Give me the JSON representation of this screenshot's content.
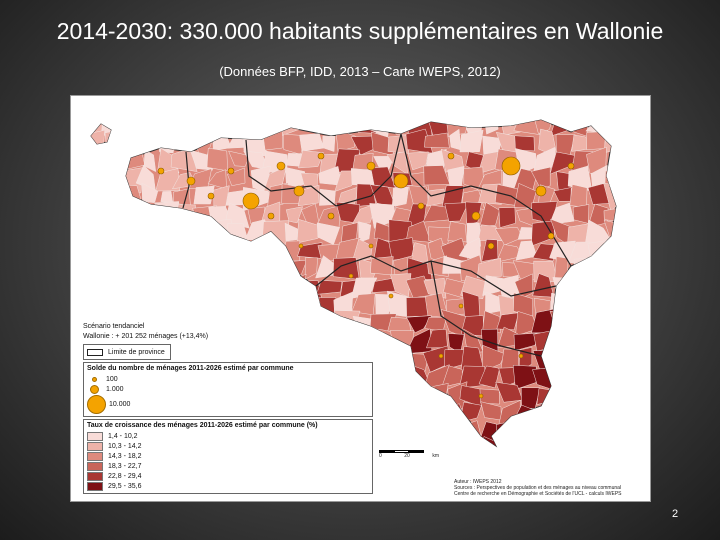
{
  "title": "2014-2030: 330.000 habitants supplémentaires en Wallonie",
  "subtitle": "(Données BFP, IDD, 2013 – Carte IWEPS, 2012)",
  "page_number": "2",
  "legend": {
    "scenario_title": "Scénario tendanciel",
    "scenario_value": "Wallonie : + 201 252 ménages (+13,4%)",
    "province_label": "Limite de province",
    "solde_title": "Solde du nombre de ménages 2011-2026 estimé par commune",
    "circles": [
      "100",
      "1.000",
      "10.000"
    ],
    "taux_title": "Taux de croissance des ménages 2011-2026 estimé par commune (%)",
    "classes": [
      {
        "label": "1,4 - 10,2",
        "color": "#f8dcd8"
      },
      {
        "label": "10,3 - 14,2",
        "color": "#eeb3a9"
      },
      {
        "label": "14,3 - 18,2",
        "color": "#de8a7d"
      },
      {
        "label": "18,3 - 22,7",
        "color": "#c9655a"
      },
      {
        "label": "22,8 - 29,4",
        "color": "#a93733"
      },
      {
        "label": "29,5 - 35,6",
        "color": "#7e1115"
      }
    ]
  },
  "scale": {
    "zero": "0",
    "max": "20",
    "unit": "km"
  },
  "credits": {
    "author": "Auteur : IWEPS 2012",
    "sources": "Sources : Perspectives de population et des ménages au niveau communal",
    "centre": "Centre de recherche en Démographie et Sociétés de l'UCL - calculs IWEPS"
  },
  "colors": {
    "circle": "#f4a300",
    "province_border": "#222222"
  }
}
